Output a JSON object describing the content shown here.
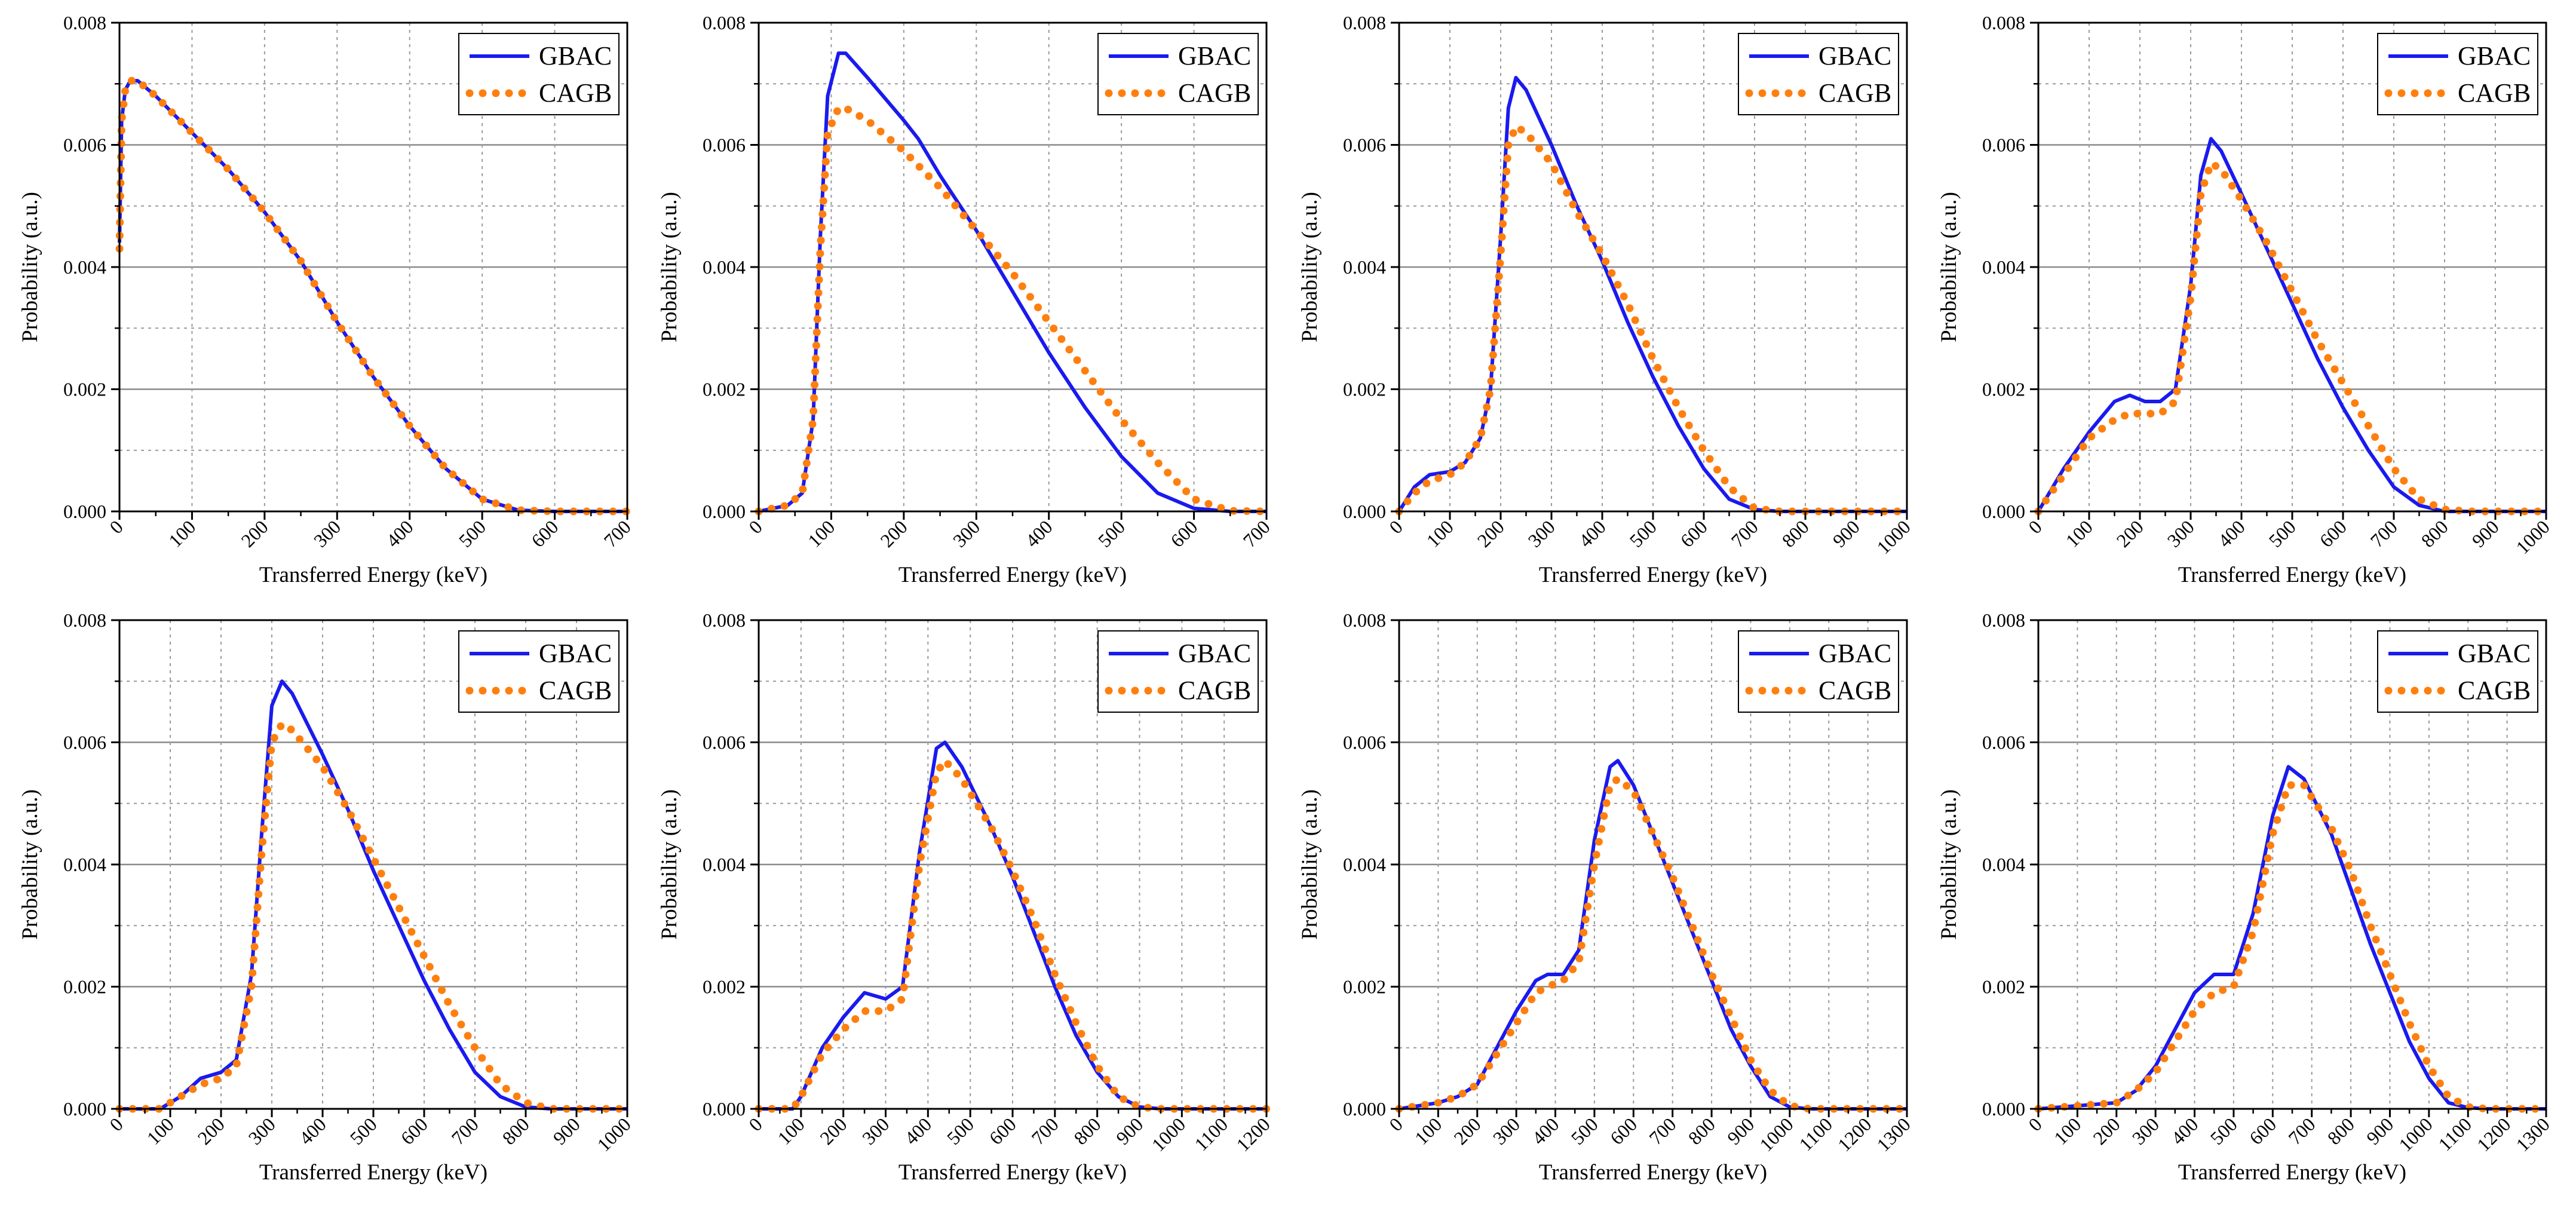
{
  "figure": {
    "panel_count": 8,
    "series_styles": [
      {
        "name": "GBAC",
        "color": "#1a1aee",
        "style": "solid"
      },
      {
        "name": "CAGB",
        "color": "#ff7f0e",
        "style": "dotted"
      }
    ]
  },
  "chart_data": [
    {
      "type": "line",
      "xlabel": "Transferred Energy (keV)",
      "ylabel": "Probability (a.u.)",
      "xlim": [
        0,
        700
      ],
      "ylim": [
        0,
        0.008
      ],
      "xticks": [
        0,
        100,
        200,
        300,
        400,
        500,
        600,
        700
      ],
      "yticks": [
        0.0,
        0.002,
        0.004,
        0.006,
        0.008
      ],
      "ytick_labels": [
        "0.000",
        "0.002",
        "0.004",
        "0.006",
        "0.008"
      ],
      "legend": "top-right",
      "series": [
        {
          "name": "GBAC",
          "x": [
            0,
            3,
            8,
            15,
            25,
            50,
            100,
            150,
            200,
            250,
            300,
            350,
            400,
            450,
            500,
            550,
            600,
            700
          ],
          "y": [
            0.0044,
            0.0064,
            0.0069,
            0.00705,
            0.00705,
            0.0068,
            0.0062,
            0.0056,
            0.0049,
            0.0041,
            0.0031,
            0.0022,
            0.0014,
            0.0007,
            0.0002,
            2e-05,
            0,
            0
          ]
        },
        {
          "name": "CAGB",
          "x": [
            0,
            3,
            8,
            15,
            25,
            50,
            100,
            150,
            200,
            250,
            300,
            350,
            400,
            450,
            500,
            550,
            600,
            700
          ],
          "y": [
            0.0043,
            0.0064,
            0.0069,
            0.00705,
            0.00705,
            0.0068,
            0.0062,
            0.0056,
            0.0049,
            0.0041,
            0.0031,
            0.0022,
            0.0014,
            0.0007,
            0.0002,
            2e-05,
            0,
            0
          ]
        }
      ]
    },
    {
      "type": "line",
      "xlabel": "Transferred Energy (keV)",
      "ylabel": "Probability (a.u.)",
      "xlim": [
        0,
        700
      ],
      "ylim": [
        0,
        0.008
      ],
      "xticks": [
        0,
        100,
        200,
        300,
        400,
        500,
        600,
        700
      ],
      "yticks": [
        0.0,
        0.002,
        0.004,
        0.006,
        0.008
      ],
      "ytick_labels": [
        "0.000",
        "0.002",
        "0.004",
        "0.006",
        "0.008"
      ],
      "legend": "top-right",
      "series": [
        {
          "name": "GBAC",
          "x": [
            0,
            40,
            60,
            75,
            85,
            95,
            110,
            120,
            150,
            200,
            220,
            250,
            300,
            350,
            400,
            450,
            500,
            550,
            600,
            650,
            700
          ],
          "y": [
            0,
            0.0001,
            0.0003,
            0.0015,
            0.0045,
            0.0068,
            0.0075,
            0.0075,
            0.0071,
            0.0064,
            0.0061,
            0.0055,
            0.0046,
            0.0036,
            0.0026,
            0.0017,
            0.0009,
            0.0003,
            5e-05,
            0,
            0
          ]
        },
        {
          "name": "CAGB",
          "x": [
            0,
            40,
            60,
            75,
            85,
            95,
            110,
            120,
            150,
            200,
            250,
            300,
            350,
            400,
            450,
            500,
            550,
            600,
            650,
            700
          ],
          "y": [
            0,
            0.0001,
            0.0003,
            0.0015,
            0.0043,
            0.0062,
            0.0066,
            0.0066,
            0.0064,
            0.0059,
            0.0053,
            0.0046,
            0.0039,
            0.0031,
            0.0023,
            0.0015,
            0.0008,
            0.0002,
            1e-05,
            0
          ]
        }
      ]
    },
    {
      "type": "line",
      "xlabel": "Transferred Energy (keV)",
      "ylabel": "Probability (a.u.)",
      "xlim": [
        0,
        1000
      ],
      "ylim": [
        0,
        0.008
      ],
      "xticks": [
        0,
        100,
        200,
        300,
        400,
        500,
        600,
        700,
        800,
        900,
        1000
      ],
      "yticks": [
        0.0,
        0.002,
        0.004,
        0.006,
        0.008
      ],
      "ytick_labels": [
        "0.000",
        "0.002",
        "0.004",
        "0.006",
        "0.008"
      ],
      "legend": "top-right",
      "series": [
        {
          "name": "GBAC",
          "x": [
            0,
            30,
            60,
            100,
            130,
            160,
            180,
            200,
            215,
            230,
            250,
            300,
            350,
            400,
            450,
            500,
            550,
            600,
            650,
            700,
            750,
            800,
            1000
          ],
          "y": [
            0,
            0.0004,
            0.0006,
            0.00065,
            0.0008,
            0.0012,
            0.002,
            0.0045,
            0.0066,
            0.0071,
            0.0069,
            0.006,
            0.005,
            0.0041,
            0.0031,
            0.0022,
            0.0014,
            0.0007,
            0.0002,
            3e-05,
            0,
            0,
            0
          ]
        },
        {
          "name": "CAGB",
          "x": [
            0,
            30,
            60,
            100,
            130,
            160,
            180,
            200,
            215,
            230,
            250,
            300,
            350,
            400,
            450,
            500,
            550,
            600,
            650,
            700,
            750,
            800,
            1000
          ],
          "y": [
            0,
            0.0003,
            0.0005,
            0.0006,
            0.0008,
            0.0012,
            0.002,
            0.0042,
            0.006,
            0.0063,
            0.0062,
            0.0057,
            0.0049,
            0.0042,
            0.0034,
            0.0025,
            0.0017,
            0.001,
            0.0004,
            5e-05,
            0,
            0,
            0
          ]
        }
      ]
    },
    {
      "type": "line",
      "xlabel": "Transferred Energy (keV)",
      "ylabel": "Probability (a.u.)",
      "xlim": [
        0,
        1000
      ],
      "ylim": [
        0,
        0.008
      ],
      "xticks": [
        0,
        100,
        200,
        300,
        400,
        500,
        600,
        700,
        800,
        900,
        1000
      ],
      "yticks": [
        0.0,
        0.002,
        0.004,
        0.006,
        0.008
      ],
      "ytick_labels": [
        "0.000",
        "0.002",
        "0.004",
        "0.006",
        "0.008"
      ],
      "legend": "top-right",
      "series": [
        {
          "name": "GBAC",
          "x": [
            0,
            50,
            100,
            150,
            180,
            210,
            240,
            270,
            300,
            320,
            340,
            360,
            400,
            450,
            500,
            550,
            600,
            650,
            700,
            750,
            800,
            850,
            1000
          ],
          "y": [
            0,
            0.0007,
            0.0013,
            0.0018,
            0.0019,
            0.0018,
            0.0018,
            0.002,
            0.0037,
            0.0055,
            0.0061,
            0.0059,
            0.0052,
            0.0043,
            0.0034,
            0.0025,
            0.0017,
            0.001,
            0.0004,
            0.0001,
            0,
            0,
            0
          ]
        },
        {
          "name": "CAGB",
          "x": [
            0,
            50,
            100,
            150,
            180,
            210,
            240,
            270,
            300,
            320,
            340,
            360,
            400,
            450,
            500,
            550,
            600,
            650,
            700,
            750,
            800,
            850,
            1000
          ],
          "y": [
            0,
            0.0006,
            0.0012,
            0.0015,
            0.0016,
            0.0016,
            0.0016,
            0.0018,
            0.0035,
            0.0052,
            0.0057,
            0.0056,
            0.0051,
            0.0044,
            0.0036,
            0.0028,
            0.0021,
            0.0014,
            0.0007,
            0.0002,
            3e-05,
            0,
            0
          ]
        }
      ]
    },
    {
      "type": "line",
      "xlabel": "Transferred Energy (keV)",
      "ylabel": "Probability (a.u.)",
      "xlim": [
        0,
        1000
      ],
      "ylim": [
        0,
        0.008
      ],
      "xticks": [
        0,
        100,
        200,
        300,
        400,
        500,
        600,
        700,
        800,
        900,
        1000
      ],
      "yticks": [
        0.0,
        0.002,
        0.004,
        0.006,
        0.008
      ],
      "ytick_labels": [
        "0.000",
        "0.002",
        "0.004",
        "0.006",
        "0.008"
      ],
      "legend": "top-right",
      "series": [
        {
          "name": "GBAC",
          "x": [
            0,
            80,
            120,
            160,
            200,
            230,
            260,
            280,
            300,
            320,
            340,
            400,
            450,
            500,
            550,
            600,
            650,
            700,
            750,
            800,
            850,
            1000
          ],
          "y": [
            0,
            0,
            0.0002,
            0.0005,
            0.0006,
            0.0008,
            0.0022,
            0.0045,
            0.0066,
            0.007,
            0.0068,
            0.0058,
            0.0049,
            0.0039,
            0.003,
            0.0021,
            0.0013,
            0.0006,
            0.0002,
            3e-05,
            0,
            0
          ]
        },
        {
          "name": "CAGB",
          "x": [
            0,
            80,
            120,
            160,
            200,
            230,
            260,
            280,
            300,
            320,
            340,
            400,
            450,
            500,
            550,
            600,
            650,
            700,
            750,
            800,
            850,
            1000
          ],
          "y": [
            0,
            0,
            0.0002,
            0.0004,
            0.0005,
            0.0007,
            0.002,
            0.0042,
            0.006,
            0.0063,
            0.0062,
            0.0056,
            0.0049,
            0.0041,
            0.0033,
            0.0025,
            0.0017,
            0.001,
            0.0004,
            0.0001,
            0,
            0
          ]
        }
      ]
    },
    {
      "type": "line",
      "xlabel": "Transferred Energy (keV)",
      "ylabel": "Probability (a.u.)",
      "xlim": [
        0,
        1200
      ],
      "ylim": [
        0,
        0.008
      ],
      "xticks": [
        0,
        100,
        200,
        300,
        400,
        500,
        600,
        700,
        800,
        900,
        1000,
        1100,
        1200
      ],
      "yticks": [
        0.0,
        0.002,
        0.004,
        0.006,
        0.008
      ],
      "ytick_labels": [
        "0.000",
        "0.002",
        "0.004",
        "0.006",
        "0.008"
      ],
      "legend": "top-right",
      "series": [
        {
          "name": "GBAC",
          "x": [
            0,
            80,
            100,
            150,
            200,
            250,
            300,
            340,
            380,
            420,
            440,
            480,
            550,
            600,
            650,
            700,
            750,
            800,
            850,
            900,
            950,
            1200
          ],
          "y": [
            0,
            0,
            0.0002,
            0.001,
            0.0015,
            0.0019,
            0.0018,
            0.002,
            0.0042,
            0.0059,
            0.006,
            0.0056,
            0.0046,
            0.0038,
            0.0029,
            0.002,
            0.0012,
            0.0006,
            0.0002,
            3e-05,
            0,
            0
          ]
        },
        {
          "name": "CAGB",
          "x": [
            0,
            80,
            100,
            150,
            200,
            250,
            300,
            340,
            380,
            420,
            440,
            480,
            550,
            600,
            650,
            700,
            750,
            800,
            850,
            900,
            950,
            1200
          ],
          "y": [
            0,
            0,
            0.0002,
            0.0009,
            0.0013,
            0.0016,
            0.0016,
            0.0018,
            0.004,
            0.0055,
            0.0057,
            0.0054,
            0.0046,
            0.0039,
            0.0031,
            0.0022,
            0.0014,
            0.0007,
            0.0002,
            3e-05,
            0,
            0
          ]
        }
      ]
    },
    {
      "type": "line",
      "xlabel": "Transferred Energy (keV)",
      "ylabel": "Probability (a.u.)",
      "xlim": [
        0,
        1300
      ],
      "ylim": [
        0,
        0.008
      ],
      "xticks": [
        0,
        100,
        200,
        300,
        400,
        500,
        600,
        700,
        800,
        900,
        1000,
        1100,
        1200,
        1300
      ],
      "yticks": [
        0.0,
        0.002,
        0.004,
        0.006,
        0.008
      ],
      "ytick_labels": [
        "0.000",
        "0.002",
        "0.004",
        "0.006",
        "0.008"
      ],
      "legend": "top-right",
      "series": [
        {
          "name": "GBAC",
          "x": [
            0,
            100,
            150,
            200,
            250,
            300,
            350,
            380,
            420,
            460,
            500,
            540,
            560,
            600,
            650,
            700,
            750,
            800,
            850,
            900,
            950,
            1000,
            1050,
            1300
          ],
          "y": [
            0,
            0.0001,
            0.0002,
            0.0004,
            0.001,
            0.0016,
            0.0021,
            0.0022,
            0.0022,
            0.0026,
            0.0044,
            0.0056,
            0.0057,
            0.0053,
            0.0045,
            0.0037,
            0.0029,
            0.0021,
            0.0013,
            0.0007,
            0.0002,
            3e-05,
            0,
            0
          ]
        },
        {
          "name": "CAGB",
          "x": [
            0,
            100,
            150,
            200,
            250,
            300,
            350,
            380,
            420,
            460,
            500,
            540,
            560,
            600,
            650,
            700,
            750,
            800,
            850,
            900,
            950,
            1000,
            1050,
            1300
          ],
          "y": [
            0,
            0.0001,
            0.0002,
            0.0004,
            0.0009,
            0.0014,
            0.0019,
            0.002,
            0.0021,
            0.0024,
            0.004,
            0.0053,
            0.0054,
            0.0052,
            0.0045,
            0.0038,
            0.003,
            0.0022,
            0.0015,
            0.0008,
            0.0003,
            5e-05,
            0,
            0
          ]
        }
      ]
    },
    {
      "type": "line",
      "xlabel": "Transferred Energy (keV)",
      "ylabel": "Probability (a.u.)",
      "xlim": [
        0,
        1300
      ],
      "ylim": [
        0,
        0.008
      ],
      "xticks": [
        0,
        100,
        200,
        300,
        400,
        500,
        600,
        700,
        800,
        900,
        1000,
        1100,
        1200,
        1300
      ],
      "yticks": [
        0.0,
        0.002,
        0.004,
        0.006,
        0.008
      ],
      "ytick_labels": [
        "0.000",
        "0.002",
        "0.004",
        "0.006",
        "0.008"
      ],
      "legend": "top-right",
      "series": [
        {
          "name": "GBAC",
          "x": [
            0,
            200,
            250,
            300,
            350,
            400,
            450,
            500,
            550,
            600,
            640,
            680,
            750,
            800,
            850,
            900,
            950,
            1000,
            1050,
            1100,
            1150,
            1300
          ],
          "y": [
            0,
            0.0001,
            0.0003,
            0.0007,
            0.0013,
            0.0019,
            0.0022,
            0.0022,
            0.0032,
            0.0048,
            0.0056,
            0.0054,
            0.0045,
            0.0036,
            0.0027,
            0.0019,
            0.0011,
            0.0005,
            0.0001,
            2e-05,
            0,
            0
          ]
        },
        {
          "name": "CAGB",
          "x": [
            0,
            200,
            250,
            300,
            350,
            400,
            450,
            500,
            550,
            600,
            640,
            680,
            750,
            800,
            850,
            900,
            950,
            1000,
            1050,
            1100,
            1150,
            1300
          ],
          "y": [
            0,
            0.0001,
            0.0003,
            0.0006,
            0.0011,
            0.0016,
            0.0019,
            0.002,
            0.0029,
            0.0045,
            0.0053,
            0.0053,
            0.0046,
            0.0039,
            0.003,
            0.0022,
            0.0014,
            0.0007,
            0.0002,
            3e-05,
            0,
            0
          ]
        }
      ]
    }
  ]
}
